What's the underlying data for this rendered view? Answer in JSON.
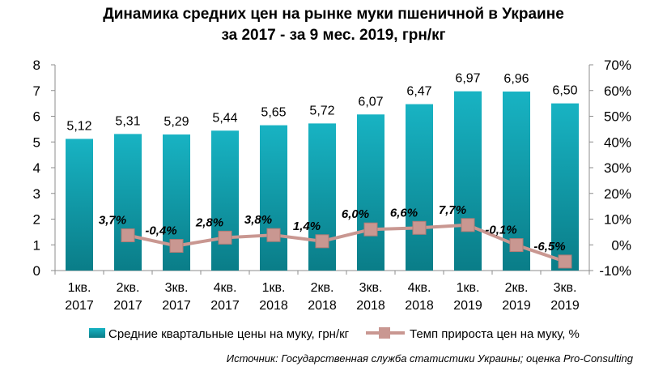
{
  "title_line1": "Динамика средних цен на рынке муки пшеничной в Украине",
  "title_line2": "за 2017 - за 9 мес. 2019, грн/кг",
  "source": "Источник: Государственная служба статистики Украины; оценка Pro-Consulting",
  "colors": {
    "bar_top": "#18b3c3",
    "bar_bottom": "#0a7d88",
    "line": "#c99791",
    "marker": "#c99791"
  },
  "chart_data": {
    "type": "bar",
    "categories": [
      [
        "1кв.",
        "2017"
      ],
      [
        "2кв.",
        "2017"
      ],
      [
        "3кв.",
        "2017"
      ],
      [
        "4кв.",
        "2017"
      ],
      [
        "1кв.",
        "2018"
      ],
      [
        "2кв.",
        "2018"
      ],
      [
        "3кв.",
        "2018"
      ],
      [
        "4кв.",
        "2018"
      ],
      [
        "1кв.",
        "2019"
      ],
      [
        "2кв.",
        "2019"
      ],
      [
        "3кв.",
        "2019"
      ]
    ],
    "series": [
      {
        "name": "Средние  квартальные  цены на муку, грн/кг",
        "type": "bar",
        "axis": "left",
        "values": [
          5.12,
          5.31,
          5.29,
          5.44,
          5.65,
          5.72,
          6.07,
          6.47,
          6.97,
          6.96,
          6.5
        ],
        "labels": [
          "5,12",
          "5,31",
          "5,29",
          "5,44",
          "5,65",
          "5,72",
          "6,07",
          "6,47",
          "6,97",
          "6,96",
          "6,50"
        ]
      },
      {
        "name": "Темп  прироста  цен на муку, %",
        "type": "line",
        "axis": "right",
        "values": [
          null,
          3.7,
          -0.4,
          2.8,
          3.8,
          1.4,
          6.0,
          6.6,
          7.7,
          -0.1,
          -6.5
        ],
        "labels": [
          "",
          "3,7%",
          "-0,4%",
          "2,8%",
          "3,8%",
          "1,4%",
          "6,0%",
          "6,6%",
          "7,7%",
          "-0,1%",
          "-6,5%"
        ]
      }
    ],
    "y_left": {
      "min": 0,
      "max": 8,
      "step": 1,
      "ticks": [
        "0",
        "1",
        "2",
        "3",
        "4",
        "5",
        "6",
        "7",
        "8"
      ]
    },
    "y_right": {
      "min": -10,
      "max": 70,
      "step": 10,
      "ticks": [
        "-10%",
        "0%",
        "10%",
        "20%",
        "30%",
        "40%",
        "50%",
        "60%",
        "70%"
      ]
    },
    "legend_position": "bottom",
    "grid": false
  }
}
